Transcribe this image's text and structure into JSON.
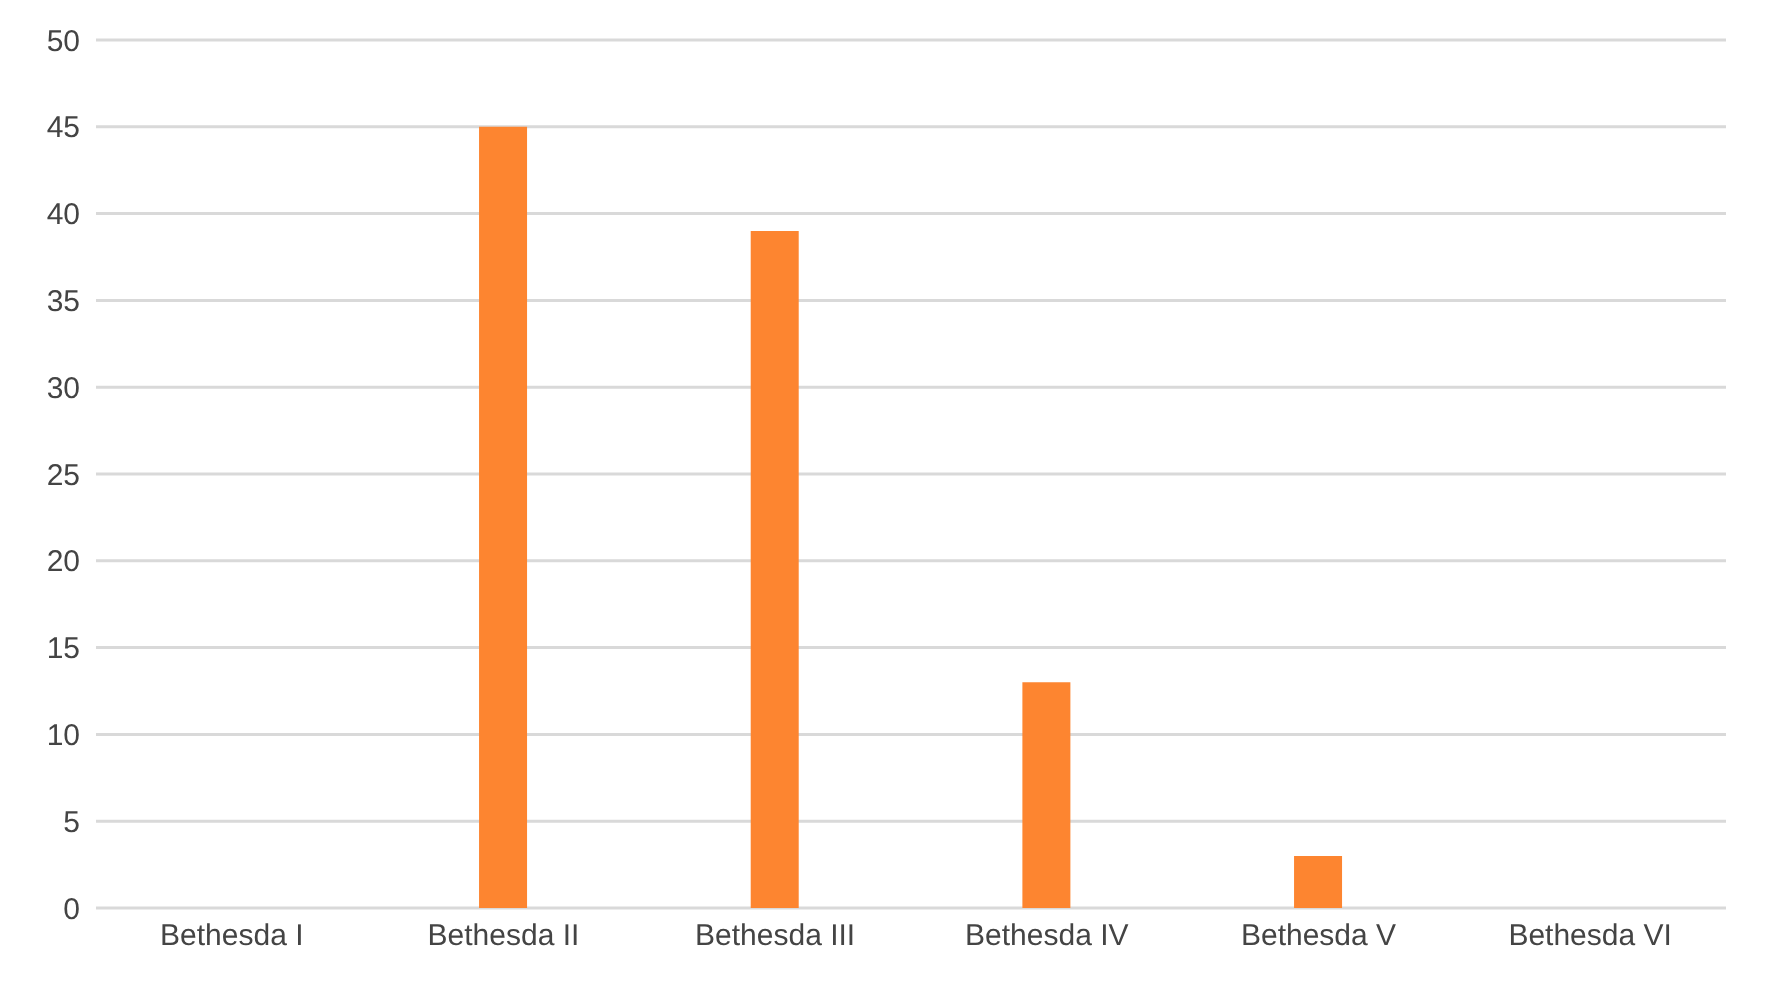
{
  "chart_data": {
    "type": "bar",
    "categories": [
      "Bethesda I",
      "Bethesda II",
      "Bethesda III",
      "Bethesda IV",
      "Bethesda V",
      "Bethesda VI"
    ],
    "values": [
      0,
      45,
      39,
      13,
      3,
      0
    ],
    "color": "#fd8530",
    "ylim": [
      0,
      50
    ],
    "yticks": [
      0,
      5,
      10,
      15,
      20,
      25,
      30,
      35,
      40,
      45,
      50
    ],
    "grid": "y"
  }
}
